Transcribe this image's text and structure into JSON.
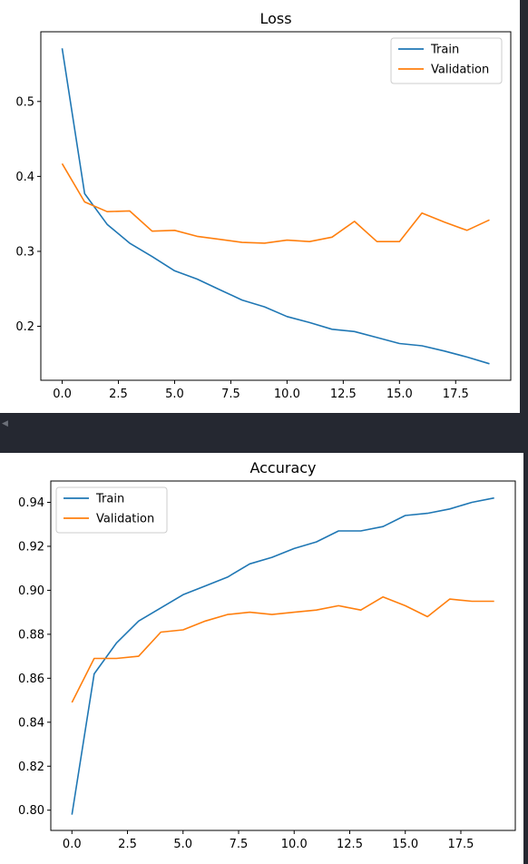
{
  "chart_data": [
    {
      "type": "line",
      "title": "Loss",
      "xlabel": "",
      "ylabel": "",
      "xlim": [
        -0.95,
        19.95
      ],
      "ylim": [
        0.128,
        0.593
      ],
      "xticks": [
        "0.0",
        "2.5",
        "5.0",
        "7.5",
        "10.0",
        "12.5",
        "15.0",
        "17.5"
      ],
      "xtick_values": [
        0,
        2.5,
        5,
        7.5,
        10,
        12.5,
        15,
        17.5
      ],
      "yticks": [
        "0.2",
        "0.3",
        "0.4",
        "0.5"
      ],
      "ytick_values": [
        0.2,
        0.3,
        0.4,
        0.5
      ],
      "grid": false,
      "legend_position": "top-right",
      "x": [
        0,
        1,
        2,
        3,
        4,
        5,
        6,
        7,
        8,
        9,
        10,
        11,
        12,
        13,
        14,
        15,
        16,
        17,
        18,
        19
      ],
      "series": [
        {
          "name": "Train",
          "color": "#1f77b4",
          "values": [
            0.571,
            0.377,
            0.336,
            0.311,
            0.293,
            0.274,
            0.263,
            0.249,
            0.235,
            0.226,
            0.213,
            0.205,
            0.196,
            0.193,
            0.185,
            0.177,
            0.174,
            0.167,
            0.159,
            0.15
          ]
        },
        {
          "name": "Validation",
          "color": "#ff7f0e",
          "values": [
            0.417,
            0.366,
            0.353,
            0.354,
            0.327,
            0.328,
            0.32,
            0.316,
            0.312,
            0.311,
            0.315,
            0.313,
            0.319,
            0.34,
            0.313,
            0.313,
            0.351,
            0.339,
            0.328,
            0.342
          ]
        }
      ]
    },
    {
      "type": "line",
      "title": "Accuracy",
      "xlabel": "",
      "ylabel": "",
      "xlim": [
        -0.95,
        19.95
      ],
      "ylim": [
        0.7908,
        0.9497
      ],
      "xticks": [
        "0.0",
        "2.5",
        "5.0",
        "7.5",
        "10.0",
        "12.5",
        "15.0",
        "17.5"
      ],
      "xtick_values": [
        0,
        2.5,
        5,
        7.5,
        10,
        12.5,
        15,
        17.5
      ],
      "yticks": [
        "0.80",
        "0.82",
        "0.84",
        "0.86",
        "0.88",
        "0.90",
        "0.92",
        "0.94"
      ],
      "ytick_values": [
        0.8,
        0.82,
        0.84,
        0.86,
        0.88,
        0.9,
        0.92,
        0.94
      ],
      "grid": false,
      "legend_position": "top-left",
      "x": [
        0,
        1,
        2,
        3,
        4,
        5,
        6,
        7,
        8,
        9,
        10,
        11,
        12,
        13,
        14,
        15,
        16,
        17,
        18,
        19
      ],
      "series": [
        {
          "name": "Train",
          "color": "#1f77b4",
          "values": [
            0.798,
            0.862,
            0.876,
            0.886,
            0.892,
            0.898,
            0.902,
            0.906,
            0.912,
            0.915,
            0.919,
            0.922,
            0.927,
            0.927,
            0.929,
            0.934,
            0.935,
            0.937,
            0.94,
            0.942
          ]
        },
        {
          "name": "Validation",
          "color": "#ff7f0e",
          "values": [
            0.849,
            0.869,
            0.869,
            0.87,
            0.881,
            0.882,
            0.886,
            0.889,
            0.89,
            0.889,
            0.89,
            0.891,
            0.893,
            0.891,
            0.897,
            0.893,
            0.888,
            0.896,
            0.895,
            0.895
          ]
        }
      ]
    }
  ]
}
